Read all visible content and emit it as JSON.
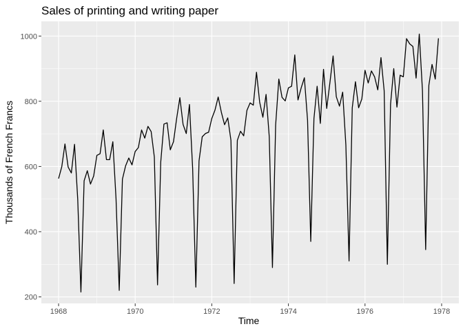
{
  "chart_data": {
    "type": "line",
    "title": "Sales of printing and writing paper",
    "xlabel": "Time",
    "ylabel": "Thousands of French Francs",
    "xlim": [
      1967.55,
      1978.45
    ],
    "ylim": [
      180,
      1045
    ],
    "x_ticks": [
      1968,
      1970,
      1972,
      1974,
      1976,
      1978
    ],
    "y_ticks": [
      200,
      400,
      600,
      800,
      1000
    ],
    "x_tick_labels": [
      "1968",
      "1970",
      "1972",
      "1974",
      "1976",
      "1978"
    ],
    "y_tick_labels": [
      "200",
      "400",
      "600",
      "800",
      "1000"
    ],
    "grid": true,
    "x_start": 1968,
    "x_step": 0.08333333,
    "series": [
      {
        "name": "",
        "color": "#000000",
        "values": [
          563,
          599,
          669,
          598,
          580,
          668,
          499,
          215,
          556,
          587,
          546,
          571,
          634,
          639,
          712,
          621,
          621,
          676,
          501,
          220,
          561,
          602,
          626,
          605,
          646,
          658,
          712,
          687,
          723,
          707,
          629,
          237,
          613,
          730,
          734,
          651,
          676,
          748,
          811,
          729,
          701,
          790,
          594,
          230,
          617,
          691,
          701,
          705,
          747,
          773,
          813,
          766,
          728,
          749,
          680,
          241,
          680,
          708,
          694,
          772,
          795,
          788,
          889,
          797,
          751,
          821,
          691,
          290,
          727,
          868,
          812,
          801,
          841,
          846,
          942,
          804,
          841,
          872,
          742,
          370,
          747,
          846,
          732,
          898,
          778,
          857,
          939,
          814,
          785,
          828,
          666,
          310,
          780,
          860,
          780,
          807,
          895,
          856,
          893,
          875,
          835,
          934,
          832,
          300,
          791,
          900,
          782,
          880,
          875,
          992,
          976,
          968,
          871,
          1006,
          832,
          345,
          849,
          913,
          868,
          993
        ]
      }
    ]
  }
}
